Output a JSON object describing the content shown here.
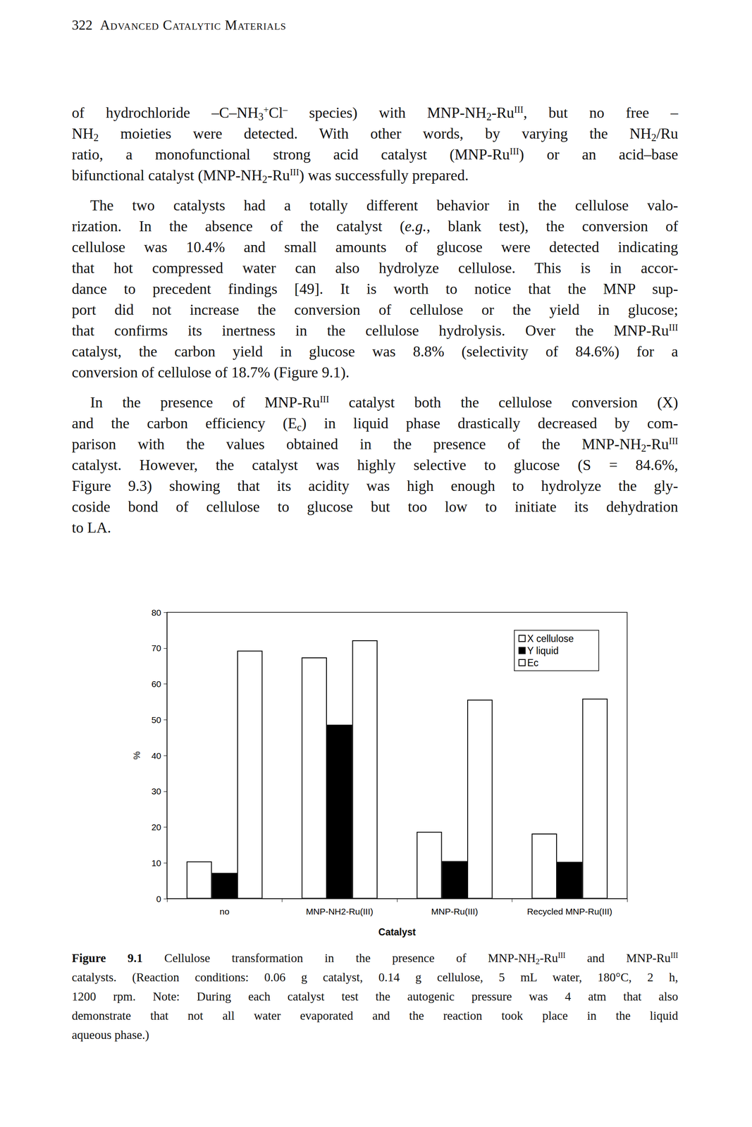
{
  "header": {
    "page": "322",
    "title": "Advanced Catalytic Materials"
  },
  "body": [
    {
      "indent": false,
      "lines": [
        [
          "of hydrochloride –C–NH",
          {
            "sub": "3"
          },
          {
            "sup": "+"
          },
          "Cl",
          {
            "sup": "–"
          },
          " species) with MNP-NH",
          {
            "sub": "2"
          },
          "-Ru",
          {
            "sup": "III"
          },
          ", but no free –"
        ],
        [
          "NH",
          {
            "sub": "2"
          },
          " moieties were detected. With other words, by varying the NH",
          {
            "sub": "2"
          },
          "/Ru"
        ],
        [
          "ratio, a monofunctional strong acid catalyst (MNP-Ru",
          {
            "sup": "III"
          },
          ") or an acid–base"
        ],
        [
          "bifunctional catalyst (MNP-NH",
          {
            "sub": "2"
          },
          "-Ru",
          {
            "sup": "III"
          },
          ") was successfully prepared."
        ]
      ]
    },
    {
      "indent": true,
      "lines": [
        [
          "The two catalysts had a totally different behavior in the cellulose valo-"
        ],
        [
          "rization. In the absence of the catalyst (",
          {
            "i": "e.g."
          },
          ", blank test), the conversion of"
        ],
        [
          "cellulose was 10.4% and small amounts of glucose were detected indicating"
        ],
        [
          "that hot compressed water can also hydrolyze cellulose. This is in accor-"
        ],
        [
          "dance to precedent findings [49]. It is worth to notice that the MNP sup-"
        ],
        [
          "port did not increase the conversion of cellulose or the yield in glucose;"
        ],
        [
          "that confirms its inertness in the cellulose hydrolysis. Over the MNP-Ru",
          {
            "sup": "III"
          }
        ],
        [
          "catalyst, the carbon yield in glucose was 8.8% (selectivity of 84.6%) for a"
        ],
        [
          "conversion of cellulose of 18.7% (Figure 9.1)."
        ]
      ]
    },
    {
      "indent": true,
      "lines": [
        [
          "In the presence of MNP-Ru",
          {
            "sup": "III"
          },
          " catalyst both the cellulose conversion (X)"
        ],
        [
          "and the carbon efficiency (E",
          {
            "sub": "c"
          },
          ") in liquid phase drastically decreased by com-"
        ],
        [
          "parison with the values obtained in the presence of the MNP-NH",
          {
            "sub": "2"
          },
          "-Ru",
          {
            "sup": "III"
          }
        ],
        [
          "catalyst. However, the catalyst was highly selective to glucose (S = 84.6%,"
        ],
        [
          "Figure 9.3) showing that its acidity was high enough to hydrolyze the gly-"
        ],
        [
          "coside bond of cellulose to glucose but too low to initiate its dehydration"
        ],
        [
          "to LA."
        ]
      ]
    }
  ],
  "chart_data": {
    "type": "bar",
    "xlabel": "Catalyst",
    "ylabel": "%",
    "categories": [
      "no",
      "MNP-NH2-Ru(III)",
      "MNP-Ru(III)",
      "Recycled MNP-Ru(III)"
    ],
    "series": [
      {
        "name": "X cellulose",
        "color": "#ffffff",
        "values": [
          10.4,
          67.4,
          18.7,
          18.2
        ]
      },
      {
        "name": "Y liquid",
        "color": "#000000",
        "values": [
          7.2,
          48.6,
          10.5,
          10.3
        ]
      },
      {
        "name": "Ec",
        "color": "#ffffff",
        "values": [
          69.3,
          72.2,
          55.6,
          55.9
        ]
      }
    ],
    "ylim": [
      0,
      80
    ],
    "yticks": [
      0,
      10,
      20,
      30,
      40,
      50,
      60,
      70,
      80
    ],
    "grid": false,
    "legend": "upper right"
  },
  "caption": {
    "lines": [
      [
        {
          "b": "Figure 9.1"
        },
        "  Cellulose transformation in the presence of MNP-NH",
        {
          "sub": "2"
        },
        "-Ru",
        {
          "sup": "III"
        },
        " and MNP-Ru",
        {
          "sup": "III"
        }
      ],
      [
        "catalysts. (Reaction conditions: 0.06 g catalyst, 0.14 g cellulose, 5 mL water, 180°C, 2 h,"
      ],
      [
        "1200 rpm. Note: During each catalyst test the autogenic pressure was 4 atm that also"
      ],
      [
        "demonstrate that not all water evaporated and the reaction took place in the liquid"
      ],
      [
        "aqueous phase.)"
      ]
    ]
  }
}
